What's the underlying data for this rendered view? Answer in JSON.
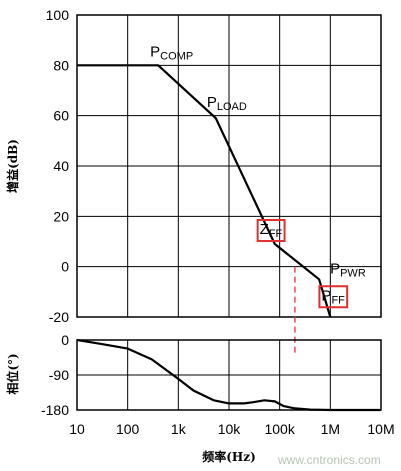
{
  "chart_data": [
    {
      "type": "line",
      "xscale": "log",
      "xlim": [
        10,
        10000000
      ],
      "ylim": [
        -20,
        100
      ],
      "yticks": [
        -20,
        0,
        20,
        40,
        60,
        80,
        100
      ],
      "ytick_labels": [
        "-20",
        "0",
        "20",
        "40",
        "60",
        "80",
        "100"
      ],
      "ylabel": "增益(dB)",
      "grid": true,
      "series": [
        {
          "name": "",
          "color": "#000000",
          "x": [
            10,
            400,
            5500,
            80000,
            600000,
            1000000
          ],
          "y": [
            80,
            80,
            59,
            9,
            -5,
            -20
          ]
        }
      ],
      "annotations": [
        {
          "text": "P",
          "sub": "COMP",
          "x": 400,
          "y": 80,
          "boxed": false
        },
        {
          "text": "P",
          "sub": "LOAD",
          "x": 5500,
          "y": 59,
          "boxed": false
        },
        {
          "text": "Z",
          "sub": "FF",
          "x": 100000,
          "y": 9,
          "boxed": true,
          "box_color": "#e03030"
        },
        {
          "text": "P",
          "sub": "PWR",
          "x": 600000,
          "y": -5,
          "boxed": false
        },
        {
          "text": "P",
          "sub": "FF",
          "x": 800000,
          "y": -5,
          "boxed": true,
          "box_color": "#e03030"
        }
      ],
      "marker_line": {
        "x": 200000,
        "color": "#e03030",
        "style": "dashed"
      }
    },
    {
      "type": "line",
      "xscale": "log",
      "xlim": [
        10,
        10000000
      ],
      "ylim": [
        -180,
        0
      ],
      "yticks": [
        -180,
        -90,
        0
      ],
      "ytick_labels": [
        "-180",
        "-90",
        "0"
      ],
      "ylabel": "相位(°)",
      "xlabel": "频率(Hz)",
      "xtick_labels": [
        "10",
        "100",
        "1k",
        "10k",
        "100k",
        "1M",
        "10M"
      ],
      "grid": true,
      "series": [
        {
          "name": "",
          "color": "#000000",
          "x": [
            10,
            30,
            100,
            300,
            1000,
            2000,
            5000,
            10000,
            20000,
            30000,
            50000,
            80000,
            120000,
            200000,
            400000,
            1000000,
            3000000,
            10000000
          ],
          "y": [
            0,
            -10,
            -22,
            -50,
            -100,
            -130,
            -155,
            -163,
            -163,
            -160,
            -155,
            -158,
            -170,
            -176,
            -179,
            -180,
            -180,
            -180
          ]
        }
      ]
    }
  ],
  "watermark": "www.cntronics.com"
}
